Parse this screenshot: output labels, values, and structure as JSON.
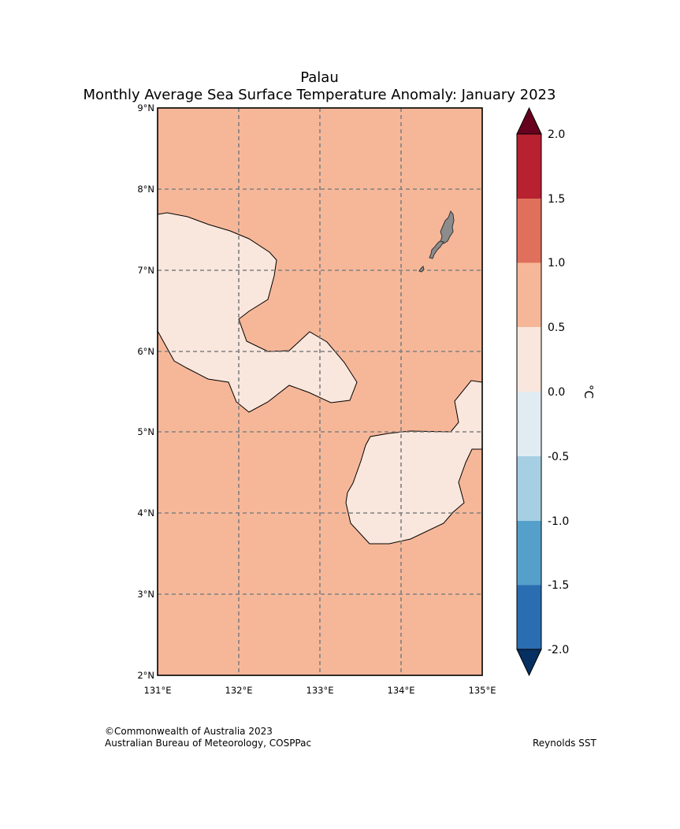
{
  "title": {
    "line1": "Palau",
    "line2": "Monthly Average Sea Surface Temperature Anomaly: January 2023"
  },
  "map": {
    "region": "Palau",
    "lat_range": [
      2,
      9
    ],
    "lon_range": [
      131,
      135
    ],
    "lat_ticks": [
      "2°N",
      "3°N",
      "4°N",
      "5°N",
      "6°N",
      "7°N",
      "8°N",
      "9°N"
    ],
    "lon_ticks": [
      "131°E",
      "132°E",
      "133°E",
      "134°E",
      "135°E"
    ],
    "background_band": "0.5 to 1.0",
    "patches_band": "0.0 to 0.5",
    "land_color": "#8c8c8c"
  },
  "colorbar": {
    "unit": "°C",
    "ticks": [
      "2.0",
      "1.5",
      "1.0",
      "0.5",
      "0.0",
      "-0.5",
      "-1.0",
      "-1.5",
      "-2.0"
    ],
    "bins": [
      {
        "range": "> 2.0",
        "color": "#67001f"
      },
      {
        "range": "1.5 to 2.0",
        "color": "#b72130"
      },
      {
        "range": "1.0 to 1.5",
        "color": "#e0705b"
      },
      {
        "range": "0.5 to 1.0",
        "color": "#f6b799"
      },
      {
        "range": "0.0 to 0.5",
        "color": "#f9e6dc"
      },
      {
        "range": "-0.5 to 0.0",
        "color": "#e1ecf2"
      },
      {
        "range": "-1.0 to -0.5",
        "color": "#a6cfe3"
      },
      {
        "range": "-1.5 to -1.0",
        "color": "#55a0cb"
      },
      {
        "range": "-2.0 to -1.5",
        "color": "#2a6db0"
      },
      {
        "range": "< -2.0",
        "color": "#053061"
      }
    ]
  },
  "footer": {
    "credit_line1": "©Commonwealth of Australia 2023",
    "credit_line2": "Australian Bureau of Meteorology, COSPPac",
    "source": "Reynolds SST"
  }
}
